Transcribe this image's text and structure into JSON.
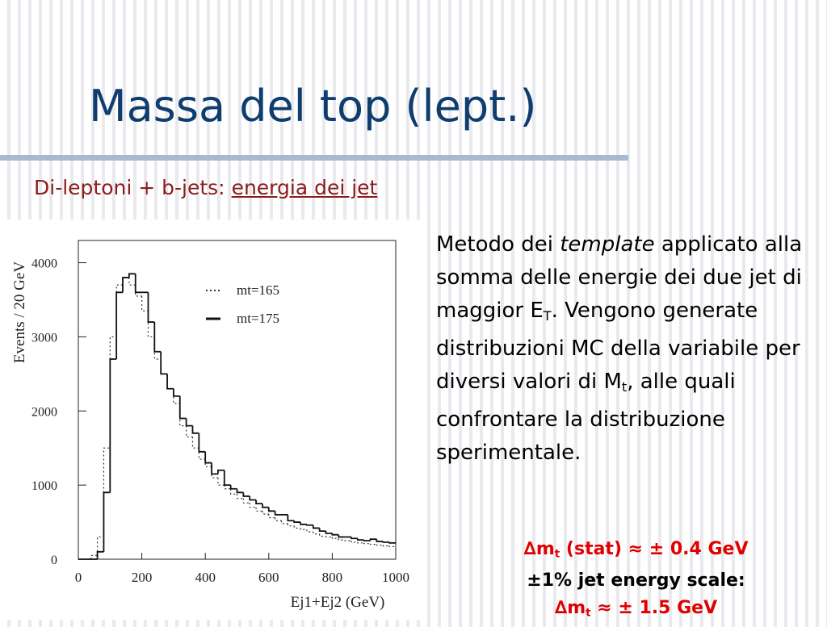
{
  "header": {
    "title": "Massa del top (lept.)"
  },
  "subtitle": {
    "lead": "Di-leptoni + b-jets: ",
    "link": "energia dei jet"
  },
  "body": {
    "segments": [
      {
        "text": "Metodo dei ",
        "style": "normal"
      },
      {
        "text": "template",
        "style": "italic"
      },
      {
        "text": " applicato alla somma delle energie dei due jet di maggior E",
        "style": "normal"
      },
      {
        "text": "T",
        "style": "sub"
      },
      {
        "text": ". Vengono generate distribuzioni MC della variabile per diversi valori di M",
        "style": "normal"
      },
      {
        "text": "t",
        "style": "sub"
      },
      {
        "text": ", alle quali confrontare la distribuzione sperimentale.",
        "style": "normal"
      }
    ]
  },
  "notes": {
    "lines": [
      {
        "color": "#e00000",
        "segments": [
          {
            "text": "∆m",
            "style": "normal"
          },
          {
            "text": "t",
            "style": "sub"
          },
          {
            "text": " (stat) ≈ ± 0.4 GeV",
            "style": "normal"
          }
        ]
      },
      {
        "color": "#000000",
        "segments": [
          {
            "text": "±1% jet energy scale:",
            "style": "normal"
          }
        ]
      },
      {
        "color": "#e00000",
        "segments": [
          {
            "text": "∆m",
            "style": "normal"
          },
          {
            "text": "t",
            "style": "sub"
          },
          {
            "text": " ≈ ± 1.5 GeV",
            "style": "normal"
          }
        ]
      }
    ]
  },
  "chart_data": {
    "type": "histogram",
    "x_label": "Ej1+Ej2 (GeV)",
    "y_label": "Events / 20 GeV",
    "bins": [
      0,
      20,
      40,
      60,
      80,
      100,
      120,
      140,
      160,
      180,
      200,
      220,
      240,
      260,
      280,
      300,
      320,
      340,
      360,
      380,
      400,
      420,
      440,
      460,
      480,
      500,
      520,
      540,
      560,
      580,
      600,
      620,
      640,
      660,
      680,
      700,
      720,
      740,
      760,
      780,
      800,
      820,
      840,
      860,
      880,
      900,
      920,
      940,
      960,
      980,
      1000
    ],
    "series": [
      {
        "name": "mt=165",
        "color": "#333333",
        "dash": "2,3",
        "values": [
          0,
          0,
          50,
          300,
          1500,
          3000,
          3700,
          3800,
          3700,
          3550,
          3350,
          3000,
          2700,
          2500,
          2300,
          2100,
          1800,
          1650,
          1500,
          1350,
          1250,
          1100,
          1000,
          950,
          880,
          820,
          760,
          700,
          650,
          610,
          560,
          520,
          480,
          450,
          420,
          400,
          370,
          340,
          310,
          300,
          280,
          260,
          250,
          230,
          220,
          210,
          200,
          190,
          180,
          170
        ]
      },
      {
        "name": "mt=175",
        "color": "#111111",
        "dash": "none",
        "values": [
          0,
          0,
          0,
          100,
          900,
          2700,
          3600,
          3800,
          3850,
          3600,
          3600,
          3200,
          2800,
          2500,
          2300,
          2200,
          1900,
          1800,
          1700,
          1450,
          1300,
          1150,
          1200,
          1000,
          950,
          900,
          850,
          800,
          750,
          700,
          650,
          600,
          600,
          520,
          500,
          470,
          460,
          420,
          380,
          350,
          330,
          300,
          300,
          280,
          260,
          250,
          270,
          240,
          230,
          220
        ]
      }
    ],
    "xlim": [
      0,
      1000
    ],
    "xticks": [
      0,
      200,
      400,
      600,
      800,
      1000
    ],
    "ylim": [
      0,
      4300
    ],
    "yticks": [
      0,
      1000,
      2000,
      3000,
      4000
    ]
  }
}
